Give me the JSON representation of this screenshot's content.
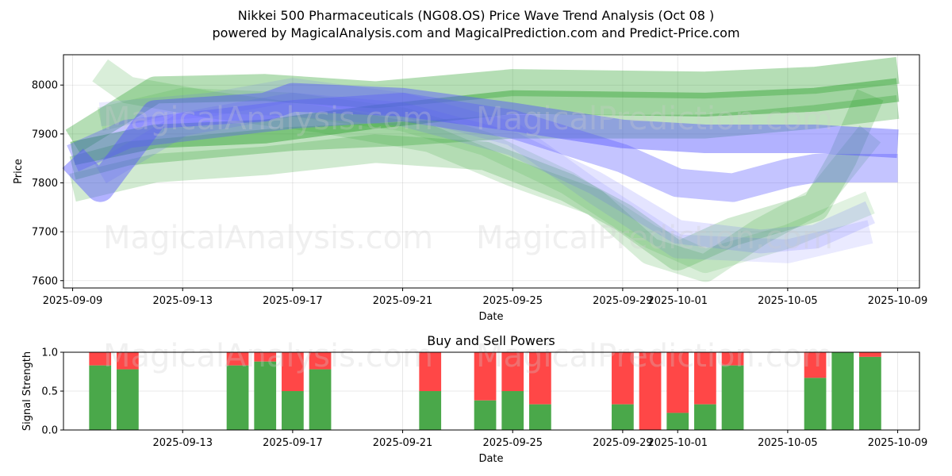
{
  "chart_data": [
    {
      "type": "area",
      "title_line1": "Nikkei 500 Pharmaceuticals (NG08.OS) Price Wave Trend Analysis (Oct 08 )",
      "title_line2": "powered by MagicalAnalysis.com and MagicalPrediction.com and Predict-Price.com",
      "xlabel": "Date",
      "ylabel": "Price",
      "ylim": [
        7585,
        8062
      ],
      "yticks": [
        7600,
        7700,
        7800,
        7900,
        8000
      ],
      "xdomain": [
        "2025-09-08T16:00",
        "2025-10-09T19:00"
      ],
      "xticks": [
        "2025-09-09",
        "2025-09-13",
        "2025-09-17",
        "2025-09-21",
        "2025-09-25",
        "2025-09-29",
        "2025-10-01",
        "2025-10-05",
        "2025-10-09"
      ],
      "grid": true,
      "watermarks": [
        "MagicalAnalysis.com",
        "MagicalPrediction.com"
      ],
      "series": [
        {
          "name": "green-wave-1",
          "color": "#2ca02c",
          "opacity": 0.35,
          "band": 34,
          "points": [
            [
              "2025-09-09",
              7885
            ],
            [
              "2025-09-12",
              7990
            ],
            [
              "2025-09-16",
              7995
            ],
            [
              "2025-09-20",
              7980
            ],
            [
              "2025-09-25",
              8005
            ],
            [
              "2025-10-02",
              8000
            ],
            [
              "2025-10-06",
              8010
            ],
            [
              "2025-10-09",
              8030
            ]
          ]
        },
        {
          "name": "green-wave-2",
          "color": "#2ca02c",
          "opacity": 0.45,
          "band": 30,
          "points": [
            [
              "2025-09-09",
              7860
            ],
            [
              "2025-09-12",
              7895
            ],
            [
              "2025-09-16",
              7905
            ],
            [
              "2025-09-20",
              7935
            ],
            [
              "2025-09-25",
              7965
            ],
            [
              "2025-10-02",
              7960
            ],
            [
              "2025-10-06",
              7970
            ],
            [
              "2025-10-09",
              7990
            ]
          ]
        },
        {
          "name": "green-wave-3",
          "color": "#2ca02c",
          "opacity": 0.3,
          "band": 30,
          "points": [
            [
              "2025-09-09",
              7830
            ],
            [
              "2025-09-11",
              7860
            ],
            [
              "2025-09-17",
              7890
            ],
            [
              "2025-09-21",
              7900
            ],
            [
              "2025-09-25",
              7915
            ],
            [
              "2025-10-02",
              7915
            ],
            [
              "2025-10-06",
              7935
            ],
            [
              "2025-10-09",
              7955
            ]
          ]
        },
        {
          "name": "green-wave-4",
          "color": "#2ca02c",
          "opacity": 0.22,
          "band": 36,
          "points": [
            [
              "2025-09-09",
              7790
            ],
            [
              "2025-09-12",
              7830
            ],
            [
              "2025-09-16",
              7845
            ],
            [
              "2025-09-20",
              7870
            ],
            [
              "2025-09-24",
              7855
            ],
            [
              "2025-09-27",
              7790
            ],
            [
              "2025-09-29",
              7730
            ],
            [
              "2025-10-01",
              7650
            ],
            [
              "2025-10-03",
              7700
            ],
            [
              "2025-10-06",
              7750
            ],
            [
              "2025-10-07",
              7850
            ],
            [
              "2025-10-08",
              7980
            ]
          ]
        },
        {
          "name": "green-wave-5",
          "color": "#2ca02c",
          "opacity": 0.18,
          "band": 34,
          "points": [
            [
              "2025-09-10",
              8030
            ],
            [
              "2025-09-11",
              7990
            ],
            [
              "2025-09-14",
              7960
            ],
            [
              "2025-09-18",
              7930
            ],
            [
              "2025-09-22",
              7890
            ],
            [
              "2025-09-25",
              7820
            ],
            [
              "2025-09-28",
              7760
            ],
            [
              "2025-09-30",
              7660
            ],
            [
              "2025-10-02",
              7625
            ],
            [
              "2025-10-04",
              7700
            ],
            [
              "2025-10-06",
              7760
            ],
            [
              "2025-10-08",
              7900
            ]
          ]
        },
        {
          "name": "green-wave-6",
          "color": "#2ca02c",
          "opacity": 0.14,
          "band": 30,
          "points": [
            [
              "2025-09-10",
              7930
            ],
            [
              "2025-09-13",
              7970
            ],
            [
              "2025-09-17",
              7960
            ],
            [
              "2025-09-21",
              7930
            ],
            [
              "2025-09-24",
              7880
            ],
            [
              "2025-09-27",
              7800
            ],
            [
              "2025-09-30",
              7690
            ],
            [
              "2025-10-02",
              7640
            ],
            [
              "2025-10-05",
              7690
            ],
            [
              "2025-10-08",
              7760
            ]
          ]
        },
        {
          "name": "blue-wave-1",
          "color": "#5555ff",
          "opacity": 0.45,
          "band": 36,
          "points": [
            [
              "2025-09-09",
              7850
            ],
            [
              "2025-09-10",
              7790
            ],
            [
              "2025-09-12",
              7940
            ],
            [
              "2025-09-16",
              7955
            ],
            [
              "2025-09-17",
              7975
            ],
            [
              "2025-09-21",
              7965
            ],
            [
              "2025-09-25",
              7935
            ],
            [
              "2025-09-29",
              7900
            ],
            [
              "2025-10-02",
              7890
            ],
            [
              "2025-10-06",
              7890
            ],
            [
              "2025-10-09",
              7880
            ]
          ]
        },
        {
          "name": "blue-wave-2",
          "color": "#5555ff",
          "opacity": 0.35,
          "band": 36,
          "points": [
            [
              "2025-09-09",
              7850
            ],
            [
              "2025-09-11",
              7900
            ],
            [
              "2025-09-17",
              7940
            ],
            [
              "2025-09-21",
              7955
            ],
            [
              "2025-09-25",
              7920
            ],
            [
              "2025-09-29",
              7850
            ],
            [
              "2025-10-01",
              7800
            ],
            [
              "2025-10-03",
              7790
            ],
            [
              "2025-10-05",
              7820
            ],
            [
              "2025-10-06",
              7830
            ],
            [
              "2025-10-09",
              7830
            ]
          ]
        },
        {
          "name": "blue-wave-3",
          "color": "#5555ff",
          "opacity": 0.16,
          "band": 30,
          "points": [
            [
              "2025-09-10",
              7820
            ],
            [
              "2025-09-13",
              7920
            ],
            [
              "2025-09-17",
              7960
            ],
            [
              "2025-09-21",
              7940
            ],
            [
              "2025-09-25",
              7880
            ],
            [
              "2025-09-28",
              7800
            ],
            [
              "2025-10-01",
              7700
            ],
            [
              "2025-10-04",
              7680
            ],
            [
              "2025-10-06",
              7690
            ],
            [
              "2025-10-08",
              7740
            ]
          ]
        },
        {
          "name": "blue-wave-4",
          "color": "#5555ff",
          "opacity": 0.12,
          "band": 30,
          "points": [
            [
              "2025-09-10",
              7940
            ],
            [
              "2025-09-14",
              7960
            ],
            [
              "2025-09-17",
              7990
            ],
            [
              "2025-09-21",
              7960
            ],
            [
              "2025-09-25",
              7900
            ],
            [
              "2025-09-28",
              7780
            ],
            [
              "2025-10-01",
              7670
            ],
            [
              "2025-10-05",
              7660
            ],
            [
              "2025-10-08",
              7700
            ]
          ]
        }
      ]
    },
    {
      "type": "bar",
      "title": "Buy and Sell Powers",
      "xlabel": "Date",
      "ylabel": "Signal Strength",
      "ylim": [
        0,
        1
      ],
      "yticks": [
        "0.0",
        "0.5",
        "1.0"
      ],
      "xdomain": [
        "2025-09-08T16:00",
        "2025-10-09T19:00"
      ],
      "xticks": [
        "2025-09-13",
        "2025-09-17",
        "2025-09-21",
        "2025-09-25",
        "2025-09-29",
        "2025-10-01",
        "2025-10-05",
        "2025-10-09"
      ],
      "grid": true,
      "watermarks": [
        "MagicalAnalysis.com",
        "MagicalPrediction.com"
      ],
      "buy_color": "#4aa84a",
      "sell_color": "#ff4747",
      "bars": [
        {
          "date": "2025-09-10",
          "buy": 0.83
        },
        {
          "date": "2025-09-11",
          "buy": 0.78
        },
        {
          "date": "2025-09-15",
          "buy": 0.83
        },
        {
          "date": "2025-09-16",
          "buy": 0.88
        },
        {
          "date": "2025-09-17",
          "buy": 0.5
        },
        {
          "date": "2025-09-18",
          "buy": 0.78
        },
        {
          "date": "2025-09-22",
          "buy": 0.5
        },
        {
          "date": "2025-09-24",
          "buy": 0.38
        },
        {
          "date": "2025-09-25",
          "buy": 0.5
        },
        {
          "date": "2025-09-26",
          "buy": 0.33
        },
        {
          "date": "2025-09-29",
          "buy": 0.33
        },
        {
          "date": "2025-09-30",
          "buy": 0.0
        },
        {
          "date": "2025-10-01",
          "buy": 0.22
        },
        {
          "date": "2025-10-02",
          "buy": 0.33
        },
        {
          "date": "2025-10-03",
          "buy": 0.83
        },
        {
          "date": "2025-10-06",
          "buy": 0.67
        },
        {
          "date": "2025-10-07",
          "buy": 1.0
        },
        {
          "date": "2025-10-08",
          "buy": 0.94
        }
      ]
    }
  ]
}
